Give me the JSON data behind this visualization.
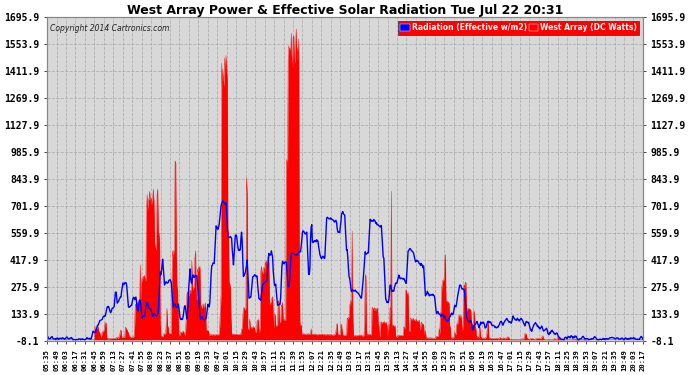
{
  "title": "West Array Power & Effective Solar Radiation Tue Jul 22 20:31",
  "copyright": "Copyright 2014 Cartronics.com",
  "legend_radiation": "Radiation (Effective w/m2)",
  "legend_west": "West Array (DC Watts)",
  "yticks": [
    -8.1,
    133.9,
    275.9,
    417.9,
    559.9,
    701.9,
    843.9,
    985.9,
    1127.9,
    1269.9,
    1411.9,
    1553.9,
    1695.9
  ],
  "ymin": -8.1,
  "ymax": 1695.9,
  "bg_color": "#ffffff",
  "plot_bg_color": "#d8d8d8",
  "grid_color": "#aaaaaa",
  "red_color": "#ff0000",
  "blue_color": "#0000ff",
  "title_color": "#000000",
  "figsize": [
    6.9,
    3.75
  ],
  "dpi": 100,
  "xtick_labels": [
    "05:35",
    "05:49",
    "06:03",
    "06:17",
    "06:31",
    "06:45",
    "06:59",
    "07:13",
    "07:27",
    "07:41",
    "07:55",
    "08:09",
    "08:23",
    "08:37",
    "08:51",
    "09:05",
    "09:19",
    "09:33",
    "09:47",
    "10:01",
    "10:15",
    "10:29",
    "10:43",
    "10:57",
    "11:11",
    "11:25",
    "11:39",
    "11:53",
    "12:07",
    "12:21",
    "12:35",
    "12:49",
    "13:03",
    "13:17",
    "13:31",
    "13:45",
    "13:59",
    "14:13",
    "14:27",
    "14:41",
    "14:55",
    "15:09",
    "15:23",
    "15:37",
    "15:51",
    "16:05",
    "16:19",
    "16:33",
    "16:47",
    "17:01",
    "17:15",
    "17:29",
    "17:43",
    "17:57",
    "18:11",
    "18:25",
    "18:39",
    "18:53",
    "19:07",
    "19:21",
    "19:35",
    "19:49",
    "20:03",
    "20:17"
  ]
}
